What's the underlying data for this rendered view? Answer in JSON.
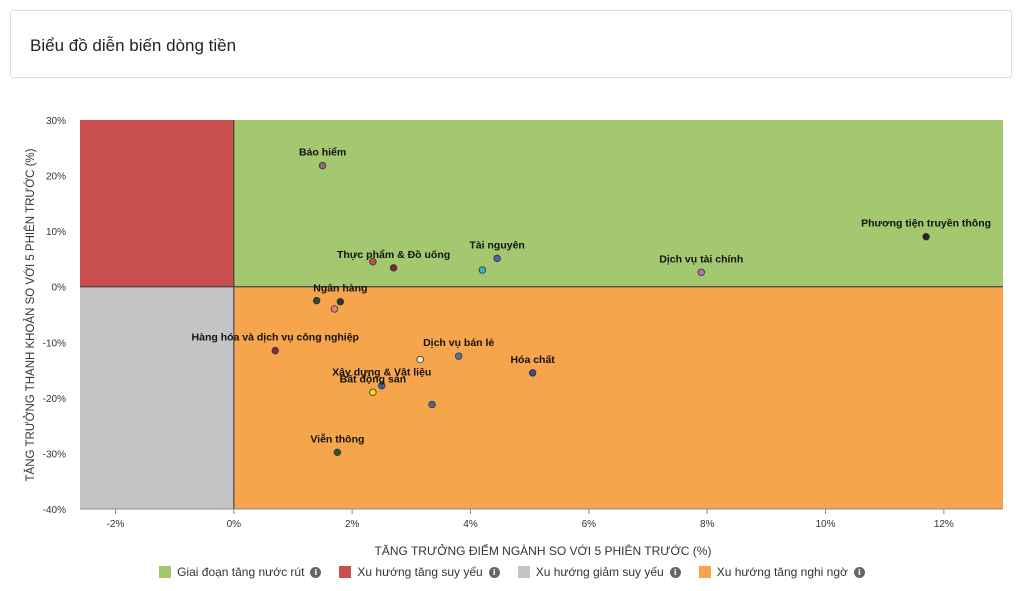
{
  "header": {
    "title": "Biểu đồ diễn biến dòng tiền"
  },
  "chart_data": {
    "type": "scatter",
    "title": "",
    "xlabel": "TĂNG TRƯỞNG ĐIỂM NGÀNH SO VỚI 5 PHIÊN TRƯỚC (%)",
    "ylabel": "TĂNG TRƯỞNG THANH KHOẢN SO VỚI 5 PHIÊN TRƯỚC (%)",
    "xlim": [
      -2.6,
      13
    ],
    "ylim": [
      -40,
      30
    ],
    "x_ticks": [
      -2,
      0,
      2,
      4,
      6,
      8,
      10,
      12
    ],
    "x_tick_labels": [
      "-2%",
      "0%",
      "2%",
      "4%",
      "6%",
      "8%",
      "10%",
      "12%"
    ],
    "y_ticks": [
      30,
      20,
      10,
      0,
      -10,
      -20,
      -30,
      -40
    ],
    "y_tick_labels": [
      "30%",
      "20%",
      "10%",
      "0%",
      "-10%",
      "-20%",
      "-30%",
      "-40%"
    ],
    "quadrants": [
      {
        "name": "Giai đoạn tăng nước rút",
        "color": "#a3c86f",
        "region": "x>=0,y>=0"
      },
      {
        "name": "Xu hướng tăng suy yếu",
        "color": "#c94f4f",
        "region": "x<0,y>=0"
      },
      {
        "name": "Xu hướng giảm suy yếu",
        "color": "#c3c4c6",
        "region": "x<0,y<0"
      },
      {
        "name": "Xu hướng tăng nghi ngờ",
        "color": "#f6a54c",
        "region": "x>=0,y<0"
      }
    ],
    "points": [
      {
        "label": "Bảo hiểm",
        "x": 1.5,
        "y": 21.8,
        "color": "#8a6a7a"
      },
      {
        "label": "Phương tiện truyền thông",
        "x": 11.7,
        "y": 9.0,
        "color": "#222222"
      },
      {
        "label": "Tài nguyên",
        "x": 4.45,
        "y": 5.1,
        "color": "#5b5bb0"
      },
      {
        "label": "",
        "x": 4.2,
        "y": 3.0,
        "color": "#40b0c0"
      },
      {
        "label": "Dịch vụ tài chính",
        "x": 7.9,
        "y": 2.6,
        "color": "#b070c0"
      },
      {
        "label": "Thực phẩm & Đồ uống",
        "x": 2.7,
        "y": 3.4,
        "color": "#7a2a3a"
      },
      {
        "label": "",
        "x": 2.35,
        "y": 4.5,
        "color": "#d04a4a"
      },
      {
        "label": "Ngân hàng",
        "x": 1.8,
        "y": -2.7,
        "color": "#333333"
      },
      {
        "label": "",
        "x": 1.4,
        "y": -2.5,
        "color": "#2a4a3a"
      },
      {
        "label": "",
        "x": 1.7,
        "y": -4.0,
        "color": "#e08080"
      },
      {
        "label": "Hàng hóa và dịch vụ công nghiệp",
        "x": 0.7,
        "y": -11.5,
        "color": "#8a2a4a"
      },
      {
        "label": "Dịch vụ bán lẻ",
        "x": 3.8,
        "y": -12.5,
        "color": "#4a7ab0"
      },
      {
        "label": "",
        "x": 3.15,
        "y": -13.1,
        "color": "#e8f0c8"
      },
      {
        "label": "Hóa chất",
        "x": 5.05,
        "y": -15.5,
        "color": "#3a4a8a"
      },
      {
        "label": "Xây dựng & Vật liệu",
        "x": 2.5,
        "y": -17.8,
        "color": "#4060a0"
      },
      {
        "label": "Bất động sản",
        "x": 2.35,
        "y": -19.0,
        "color": "#f0e020"
      },
      {
        "label": "",
        "x": 3.35,
        "y": -21.2,
        "color": "#4a6a8a"
      },
      {
        "label": "Viễn thông",
        "x": 1.75,
        "y": -29.8,
        "color": "#2a5a2a"
      }
    ]
  },
  "legend": {
    "items": [
      {
        "label": "Giai đoạn tăng nước rút",
        "color": "#a3c86f",
        "icon": "info-icon"
      },
      {
        "label": "Xu hướng tăng suy yếu",
        "color": "#c94f4f",
        "icon": "info-icon"
      },
      {
        "label": "Xu hướng giảm suy yếu",
        "color": "#c3c4c6",
        "icon": "info-icon"
      },
      {
        "label": "Xu hướng tăng nghi ngờ",
        "color": "#f6a54c",
        "icon": "info-icon"
      }
    ],
    "info_glyph": "i"
  }
}
